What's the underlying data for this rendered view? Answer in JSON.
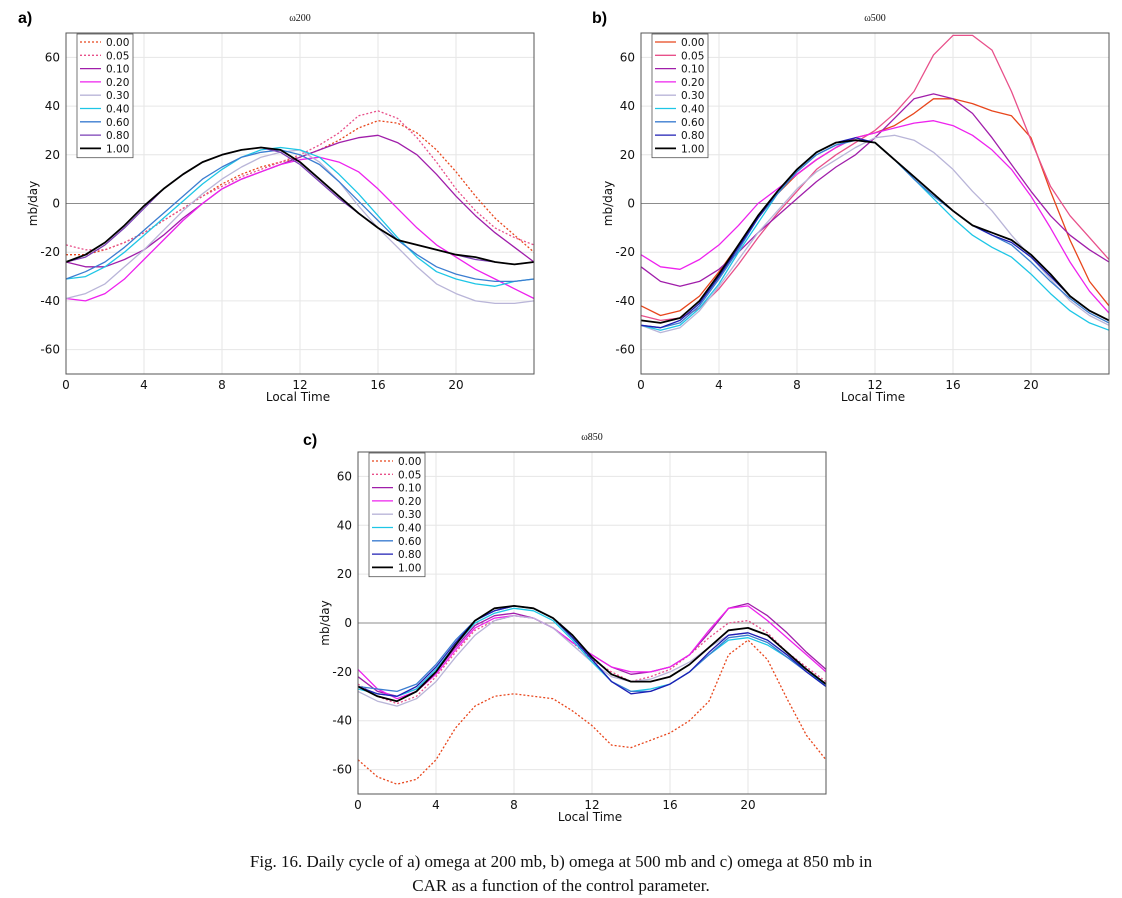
{
  "caption": {
    "line1": "Fig. 16. Daily cycle of a) omega at 200 mb, b) omega at 500 mb and c) omega at 850 mb in",
    "line2": "CAR as a function of the control parameter."
  },
  "chart_data": [
    {
      "type": "line",
      "panel_label": "a)",
      "title": "ω200",
      "xlabel": "Local Time",
      "ylabel": "mb/day",
      "xlim": [
        0,
        24
      ],
      "ylim": [
        -70,
        70
      ],
      "xticks": [
        0,
        4,
        8,
        12,
        16,
        20
      ],
      "yticks": [
        -60,
        -40,
        -20,
        0,
        20,
        40,
        60
      ],
      "grid": true,
      "zero_line": true,
      "legend_position": "top-left",
      "x": [
        0,
        1,
        2,
        3,
        4,
        5,
        6,
        7,
        8,
        9,
        10,
        11,
        12,
        13,
        14,
        15,
        16,
        17,
        18,
        19,
        20,
        21,
        22,
        23,
        24
      ],
      "series": [
        {
          "name": "0.00",
          "color": "#e8461c",
          "style": "dotted",
          "values": [
            -21,
            -21,
            -19,
            -16,
            -12,
            -7,
            -2,
            3,
            8,
            12,
            15,
            17,
            19,
            22,
            26,
            31,
            34,
            33,
            29,
            22,
            13,
            3,
            -6,
            -13,
            -20
          ]
        },
        {
          "name": "0.05",
          "color": "#e8508a",
          "style": "dotted",
          "values": [
            -17,
            -19,
            -19,
            -16,
            -12,
            -7,
            -2,
            3,
            7,
            11,
            14,
            17,
            20,
            24,
            29,
            36,
            38,
            35,
            27,
            17,
            6,
            -3,
            -10,
            -14,
            -17
          ]
        },
        {
          "name": "0.10",
          "color": "#a01eaa",
          "style": "solid",
          "values": [
            -24,
            -26,
            -26,
            -23,
            -19,
            -13,
            -6,
            0,
            6,
            10,
            13,
            16,
            19,
            22,
            25,
            27,
            28,
            25,
            20,
            12,
            3,
            -5,
            -12,
            -18,
            -24
          ]
        },
        {
          "name": "0.20",
          "color": "#ee22ee",
          "style": "solid",
          "values": [
            -39,
            -40,
            -37,
            -31,
            -23,
            -15,
            -7,
            0,
            6,
            10,
            13,
            16,
            18,
            19,
            17,
            13,
            6,
            -2,
            -10,
            -17,
            -22,
            -27,
            -31,
            -35,
            -39
          ]
        },
        {
          "name": "0.30",
          "color": "#b9b5d8",
          "style": "solid",
          "values": [
            -39,
            -37,
            -33,
            -26,
            -19,
            -11,
            -3,
            4,
            10,
            15,
            19,
            21,
            22,
            17,
            9,
            -1,
            -10,
            -18,
            -26,
            -33,
            -37,
            -40,
            -41,
            -41,
            -40
          ]
        },
        {
          "name": "0.40",
          "color": "#1ec6e6",
          "style": "solid",
          "values": [
            -31,
            -30,
            -26,
            -20,
            -13,
            -6,
            1,
            8,
            14,
            19,
            22,
            23,
            22,
            19,
            12,
            4,
            -5,
            -14,
            -22,
            -28,
            -31,
            -33,
            -34,
            -32,
            -31
          ]
        },
        {
          "name": "0.60",
          "color": "#3b7dd0",
          "style": "solid",
          "values": [
            -31,
            -28,
            -24,
            -18,
            -11,
            -4,
            3,
            10,
            15,
            19,
            21,
            22,
            20,
            16,
            9,
            1,
            -7,
            -15,
            -21,
            -26,
            -29,
            -31,
            -32,
            -32,
            -31
          ]
        },
        {
          "name": "0.80",
          "color": "#7a3fb5",
          "style": "solid",
          "values": [
            -24,
            -22,
            -17,
            -10,
            -2,
            6,
            12,
            17,
            20,
            22,
            23,
            21,
            16,
            9,
            2,
            -4,
            -10,
            -15,
            -17,
            -19,
            -21,
            -23,
            -24,
            -25,
            -24
          ]
        },
        {
          "name": "1.00",
          "color": "#000000",
          "style": "solid",
          "values": [
            -24,
            -21,
            -16,
            -9,
            -1,
            6,
            12,
            17,
            20,
            22,
            23,
            22,
            17,
            10,
            3,
            -4,
            -10,
            -15,
            -17,
            -19,
            -21,
            -22,
            -24,
            -25,
            -24
          ]
        }
      ]
    },
    {
      "type": "line",
      "panel_label": "b)",
      "title": "ω500",
      "xlabel": "Local Time",
      "ylabel": "mb/day",
      "xlim": [
        0,
        24
      ],
      "ylim": [
        -70,
        70
      ],
      "xticks": [
        0,
        4,
        8,
        12,
        16,
        20
      ],
      "yticks": [
        -60,
        -40,
        -20,
        0,
        20,
        40,
        60
      ],
      "grid": true,
      "zero_line": true,
      "legend_position": "top-left",
      "x": [
        0,
        1,
        2,
        3,
        4,
        5,
        6,
        7,
        8,
        9,
        10,
        11,
        12,
        13,
        14,
        15,
        16,
        17,
        18,
        19,
        20,
        21,
        22,
        23,
        24
      ],
      "series": [
        {
          "name": "0.00",
          "color": "#e8461c",
          "style": "solid",
          "values": [
            -42,
            -46,
            -44,
            -38,
            -28,
            -17,
            -6,
            4,
            12,
            18,
            23,
            27,
            29,
            32,
            37,
            43,
            43,
            41,
            38,
            36,
            27,
            5,
            -15,
            -32,
            -42
          ]
        },
        {
          "name": "0.05",
          "color": "#e8508a",
          "style": "solid",
          "values": [
            -46,
            -48,
            -47,
            -43,
            -35,
            -25,
            -14,
            -4,
            5,
            14,
            20,
            25,
            30,
            37,
            46,
            61,
            69,
            69,
            63,
            46,
            26,
            7,
            -5,
            -14,
            -23
          ]
        },
        {
          "name": "0.10",
          "color": "#a01eaa",
          "style": "solid",
          "values": [
            -26,
            -32,
            -34,
            -32,
            -27,
            -20,
            -12,
            -5,
            2,
            9,
            15,
            20,
            27,
            35,
            43,
            45,
            43,
            37,
            27,
            16,
            5,
            -5,
            -13,
            -19,
            -24
          ]
        },
        {
          "name": "0.20",
          "color": "#ee22ee",
          "style": "solid",
          "values": [
            -21,
            -26,
            -27,
            -23,
            -17,
            -9,
            0,
            6,
            12,
            18,
            23,
            27,
            29,
            31,
            33,
            34,
            32,
            28,
            22,
            14,
            3,
            -10,
            -24,
            -36,
            -45
          ]
        },
        {
          "name": "0.30",
          "color": "#b9b5d8",
          "style": "solid",
          "values": [
            -50,
            -53,
            -51,
            -44,
            -34,
            -23,
            -12,
            -3,
            6,
            13,
            18,
            23,
            27,
            28,
            26,
            21,
            14,
            5,
            -3,
            -13,
            -22,
            -31,
            -40,
            -46,
            -50
          ]
        },
        {
          "name": "0.40",
          "color": "#1ec6e6",
          "style": "solid",
          "values": [
            -50,
            -52,
            -50,
            -43,
            -33,
            -20,
            -8,
            4,
            13,
            20,
            24,
            26,
            25,
            18,
            10,
            2,
            -6,
            -13,
            -18,
            -22,
            -29,
            -37,
            -44,
            -49,
            -52
          ]
        },
        {
          "name": "0.60",
          "color": "#3b7dd0",
          "style": "solid",
          "values": [
            -50,
            -51,
            -49,
            -42,
            -31,
            -19,
            -6,
            4,
            13,
            20,
            24,
            26,
            25,
            18,
            10,
            3,
            -3,
            -9,
            -13,
            -17,
            -24,
            -32,
            -39,
            -45,
            -49
          ]
        },
        {
          "name": "0.80",
          "color": "#1e1eb4",
          "style": "solid",
          "values": [
            -50,
            -51,
            -48,
            -41,
            -30,
            -18,
            -6,
            5,
            14,
            21,
            25,
            27,
            25,
            18,
            11,
            4,
            -3,
            -9,
            -13,
            -16,
            -22,
            -30,
            -38,
            -44,
            -48
          ]
        },
        {
          "name": "1.00",
          "color": "#000000",
          "style": "solid",
          "values": [
            -48,
            -49,
            -47,
            -40,
            -29,
            -17,
            -5,
            5,
            14,
            21,
            25,
            26,
            25,
            18,
            11,
            4,
            -3,
            -9,
            -12,
            -15,
            -21,
            -29,
            -38,
            -44,
            -48
          ]
        }
      ]
    },
    {
      "type": "line",
      "panel_label": "c)",
      "title": "ω850",
      "xlabel": "Local Time",
      "ylabel": "mb/day",
      "xlim": [
        0,
        24
      ],
      "ylim": [
        -70,
        70
      ],
      "xticks": [
        0,
        4,
        8,
        12,
        16,
        20
      ],
      "yticks": [
        -60,
        -40,
        -20,
        0,
        20,
        40,
        60
      ],
      "grid": true,
      "zero_line": true,
      "legend_position": "top-left",
      "x": [
        0,
        1,
        2,
        3,
        4,
        5,
        6,
        7,
        8,
        9,
        10,
        11,
        12,
        13,
        14,
        15,
        16,
        17,
        18,
        19,
        20,
        21,
        22,
        23,
        24
      ],
      "series": [
        {
          "name": "0.00",
          "color": "#e8461c",
          "style": "dotted",
          "values": [
            -56,
            -63,
            -66,
            -64,
            -56,
            -43,
            -34,
            -30,
            -29,
            -30,
            -31,
            -36,
            -42,
            -50,
            -51,
            -48,
            -45,
            -40,
            -32,
            -13,
            -7,
            -15,
            -31,
            -46,
            -56
          ]
        },
        {
          "name": "0.05",
          "color": "#e8508a",
          "style": "dotted",
          "values": [
            -25,
            -30,
            -33,
            -30,
            -22,
            -12,
            -3,
            1,
            3,
            2,
            -2,
            -8,
            -15,
            -20,
            -24,
            -22,
            -19,
            -13,
            -6,
            0,
            1,
            -4,
            -12,
            -18,
            -24
          ]
        },
        {
          "name": "0.10",
          "color": "#a01eaa",
          "style": "solid",
          "values": [
            -22,
            -28,
            -30,
            -27,
            -20,
            -10,
            -1,
            3,
            4,
            2,
            -2,
            -8,
            -13,
            -18,
            -21,
            -20,
            -18,
            -13,
            -4,
            6,
            8,
            3,
            -4,
            -12,
            -19
          ]
        },
        {
          "name": "0.20",
          "color": "#ee22ee",
          "style": "solid",
          "values": [
            -19,
            -27,
            -31,
            -28,
            -21,
            -11,
            -2,
            2,
            3,
            2,
            -2,
            -8,
            -13,
            -18,
            -20,
            -20,
            -18,
            -13,
            -3,
            6,
            7,
            1,
            -6,
            -13,
            -20
          ]
        },
        {
          "name": "0.30",
          "color": "#b9b5d8",
          "style": "solid",
          "values": [
            -28,
            -32,
            -34,
            -31,
            -24,
            -14,
            -5,
            1,
            3,
            2,
            -2,
            -9,
            -16,
            -22,
            -24,
            -23,
            -20,
            -16,
            -10,
            -5,
            -4,
            -7,
            -13,
            -19,
            -26
          ]
        },
        {
          "name": "0.40",
          "color": "#1ec6e6",
          "style": "solid",
          "values": [
            -27,
            -29,
            -30,
            -27,
            -19,
            -9,
            0,
            4,
            6,
            5,
            1,
            -7,
            -16,
            -24,
            -28,
            -27,
            -25,
            -20,
            -13,
            -7,
            -6,
            -9,
            -14,
            -19,
            -26
          ]
        },
        {
          "name": "0.60",
          "color": "#3b7dd0",
          "style": "solid",
          "values": [
            -26,
            -27,
            -28,
            -25,
            -17,
            -7,
            1,
            5,
            7,
            6,
            2,
            -6,
            -15,
            -24,
            -28,
            -28,
            -25,
            -20,
            -13,
            -6,
            -5,
            -8,
            -14,
            -20,
            -26
          ]
        },
        {
          "name": "0.80",
          "color": "#1e1eb4",
          "style": "solid",
          "values": [
            -26,
            -29,
            -30,
            -26,
            -18,
            -8,
            1,
            5,
            7,
            6,
            2,
            -6,
            -15,
            -24,
            -29,
            -28,
            -25,
            -20,
            -12,
            -5,
            -4,
            -7,
            -13,
            -20,
            -26
          ]
        },
        {
          "name": "1.00",
          "color": "#000000",
          "style": "solid",
          "values": [
            -26,
            -30,
            -32,
            -28,
            -20,
            -9,
            1,
            6,
            7,
            6,
            2,
            -5,
            -14,
            -21,
            -24,
            -24,
            -22,
            -17,
            -10,
            -3,
            -2,
            -5,
            -12,
            -19,
            -25
          ]
        }
      ]
    }
  ]
}
